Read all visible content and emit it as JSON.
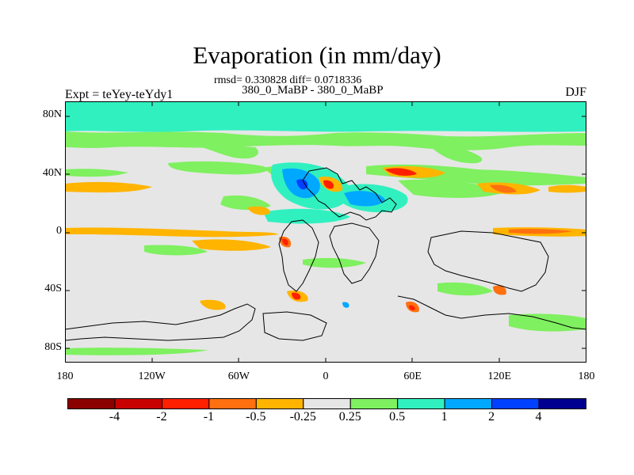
{
  "header": {
    "title": "Evaporation (in mm/day)",
    "stats": "rmsd= 0.330828 diff= 0.0718336",
    "cases": "380_0_MaBP - 380_0_MaBP",
    "expt": "Expt = teYey-teYdy1",
    "season": "DJF"
  },
  "axes": {
    "lat_ticks": [
      {
        "value": 80,
        "label": "80N"
      },
      {
        "value": 40,
        "label": "40N"
      },
      {
        "value": 0,
        "label": "0"
      },
      {
        "value": -40,
        "label": "40S"
      },
      {
        "value": -80,
        "label": "80S"
      }
    ],
    "lon_ticks": [
      {
        "value": -180,
        "label": "180"
      },
      {
        "value": -120,
        "label": "120W"
      },
      {
        "value": -60,
        "label": "60W"
      },
      {
        "value": 0,
        "label": "0"
      },
      {
        "value": 60,
        "label": "60E"
      },
      {
        "value": 120,
        "label": "120E"
      },
      {
        "value": 180,
        "label": "180"
      }
    ],
    "lon_range": [
      -180,
      180
    ],
    "lat_range": [
      -90,
      90
    ]
  },
  "colorbar": {
    "colors": [
      "#8b0000",
      "#c80000",
      "#ff2000",
      "#ff7010",
      "#ffb400",
      "#e6e6e6",
      "#7ff060",
      "#30f0c0",
      "#00a8ff",
      "#0040ff",
      "#000090"
    ],
    "labels": [
      "-4",
      "-2",
      "-1",
      "-0.5",
      "-0.25",
      "0.25",
      "0.5",
      "1",
      "2",
      "4"
    ]
  },
  "map_colors": {
    "background": "#e6e6e6",
    "cyan": "#30f0c0",
    "green": "#7ff060",
    "yellow": "#ffb400",
    "orange": "#ff7010",
    "red": "#ff2000",
    "lightblue": "#00a8ff",
    "blue": "#0040ff"
  }
}
